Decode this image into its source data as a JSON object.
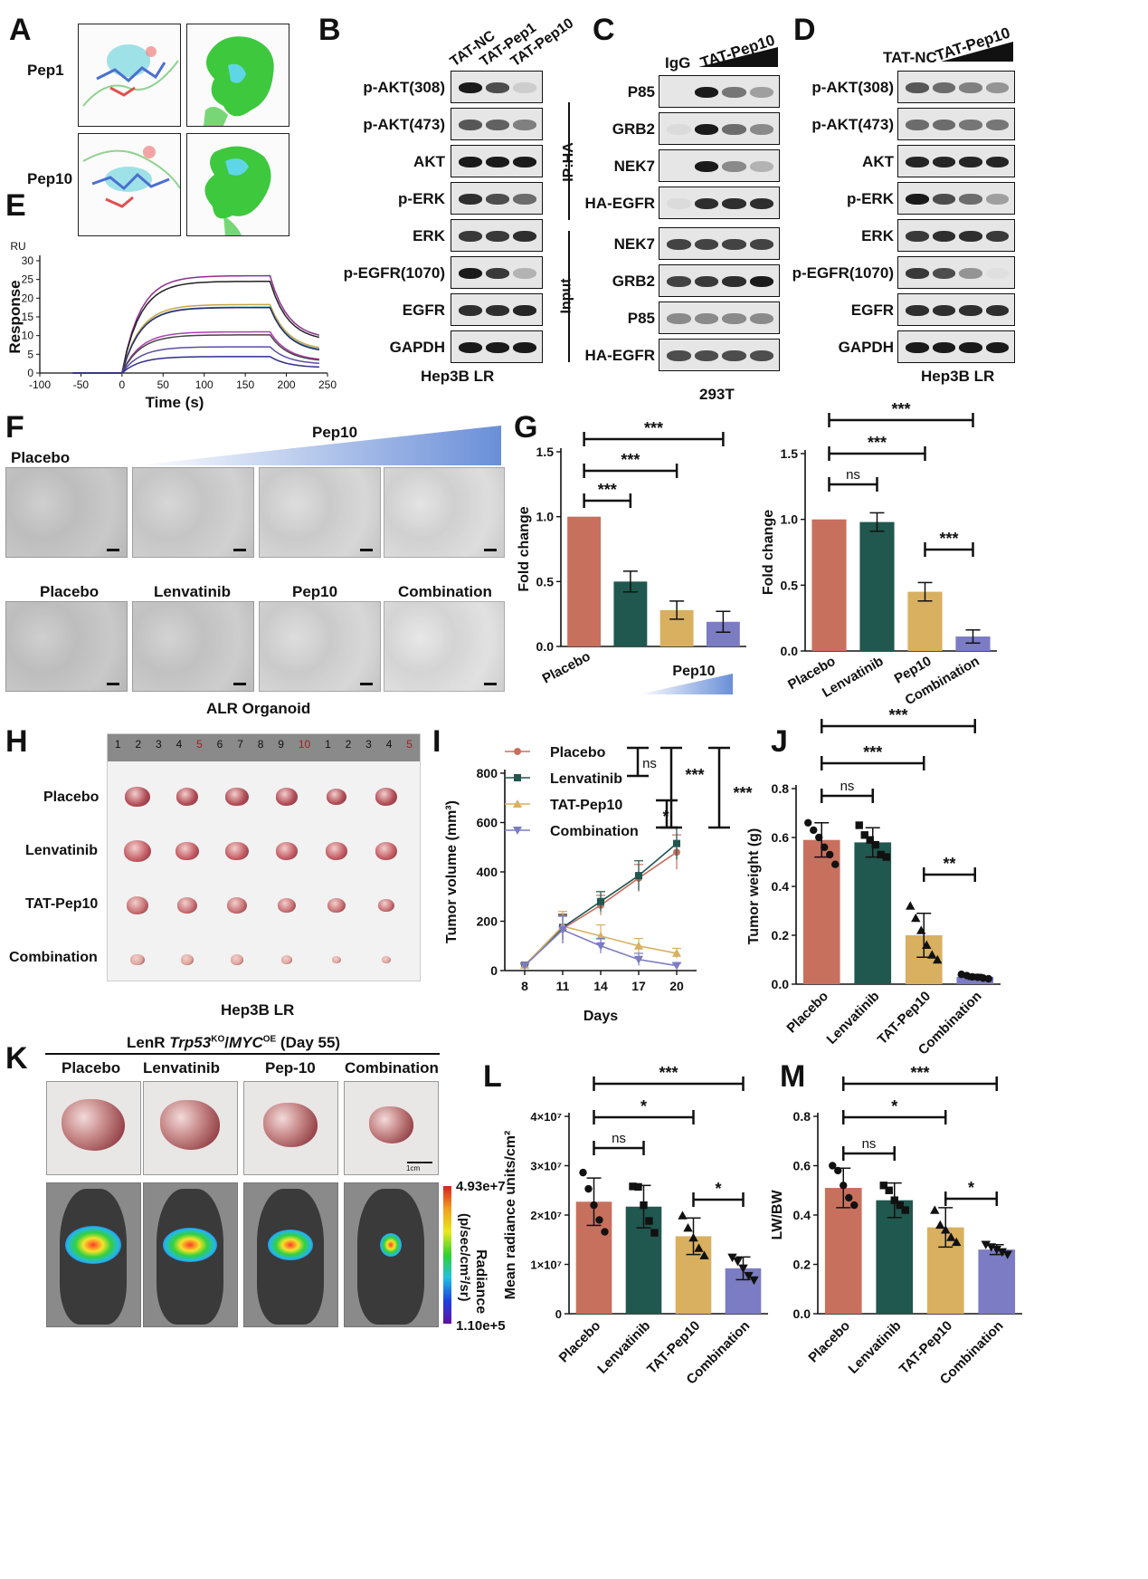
{
  "panels": {
    "A": "A",
    "B": "B",
    "C": "C",
    "D": "D",
    "E": "E",
    "F": "F",
    "G": "G",
    "H": "H",
    "I": "I",
    "J": "J",
    "K": "K",
    "L": "L",
    "M": "M"
  },
  "panel_a": {
    "row1": "Pep1",
    "row2": "Pep10"
  },
  "panel_b": {
    "lanes": [
      "TAT-NC",
      "TAT-Pep1",
      "TAT-Pep10"
    ],
    "rows": [
      "p-AKT(308)",
      "p-AKT(473)",
      "AKT",
      "p-ERK",
      "ERK",
      "p-EGFR(1070)",
      "EGFR",
      "GAPDH"
    ],
    "caption": "Hep3B LR"
  },
  "panel_c": {
    "lane_igg": "IgG",
    "lane_pep": "TAT-Pep10",
    "group_ip": "IP:HA",
    "group_input": "Input",
    "ip_rows": [
      "P85",
      "GRB2",
      "NEK7",
      "HA-EGFR"
    ],
    "input_rows": [
      "NEK7",
      "GRB2",
      "P85",
      "HA-EGFR"
    ],
    "caption": "293T"
  },
  "panel_d": {
    "lane_nc": "TAT-NC",
    "lane_pep": "TAT-Pep10",
    "rows": [
      "p-AKT(308)",
      "p-AKT(473)",
      "AKT",
      "p-ERK",
      "ERK",
      "p-EGFR(1070)",
      "EGFR",
      "GAPDH"
    ],
    "caption": "Hep3B LR"
  },
  "panel_f": {
    "row1_left": "Placebo",
    "row1_gradient": "Pep10",
    "row2": [
      "Placebo",
      "Lenvatinib",
      "Pep10",
      "Combination"
    ],
    "caption": "ALR Organoid"
  },
  "panel_h": {
    "rows": [
      "Placebo",
      "Lenvatinib",
      "TAT-Pep10",
      "Combination"
    ],
    "ruler": [
      "1",
      "2",
      "3",
      "4",
      "5",
      "6",
      "7",
      "8",
      "9",
      "10",
      "1",
      "2",
      "3",
      "4",
      "5"
    ],
    "caption": "Hep3B LR"
  },
  "panel_k": {
    "title_prefix": "LenR ",
    "title_gene1": "Trp53",
    "title_sup1": "KO",
    "title_sep": "/",
    "title_gene2": "MYC",
    "title_sup2": "OE",
    "title_suffix": " (Day 55)",
    "cols": [
      "Placebo",
      "Lenvatinib",
      "Pep-10",
      "Combination"
    ],
    "scale": "1cm",
    "colorbar_max": "4.93e+7",
    "colorbar_min": "1.10e+5",
    "colorbar_label": "Radiance",
    "colorbar_units": "(p/sec/cm²/sr)"
  },
  "colors": {
    "placebo": "#c8705e",
    "lenvatinib": "#20574f",
    "pep10": "#d8b060",
    "combination": "#7b7cc3",
    "band": "#1a1a1a"
  },
  "chart_data": [
    {
      "id": "E",
      "type": "line",
      "unit_label": "RU",
      "ylabel": "Response",
      "xlabel": "Time (s)",
      "xlim": [
        -100,
        250
      ],
      "ylim": [
        0,
        30
      ],
      "xticks": [
        -100,
        -50,
        0,
        50,
        100,
        150,
        200,
        250
      ],
      "yticks": [
        0,
        5,
        10,
        15,
        20,
        25,
        30
      ],
      "series": [
        {
          "color": "#8e2f8e",
          "plateau": 26.0,
          "end": 9.0
        },
        {
          "color": "#222222",
          "plateau": 24.5,
          "end": 8.5
        },
        {
          "color": "#c9a640",
          "plateau": 18.3,
          "end": 6.0
        },
        {
          "color": "#3aa7b5",
          "plateau": 17.6,
          "end": 5.6
        },
        {
          "color": "#2c2c6c",
          "plateau": 17.5,
          "end": 5.4
        },
        {
          "color": "#b03fb0",
          "plateau": 11.0,
          "end": 3.2
        },
        {
          "color": "#444444",
          "plateau": 10.2,
          "end": 3.0
        },
        {
          "color": "#5a4fa0",
          "plateau": 7.0,
          "end": 2.3
        },
        {
          "color": "#2f2f8a",
          "plateau": 4.4,
          "end": 1.4
        }
      ]
    },
    {
      "id": "G-left",
      "type": "bar",
      "ylabel": "Fold change",
      "ylim": [
        0,
        1.5
      ],
      "yticks": [
        "0.0",
        "0.5",
        "1.0",
        "1.5"
      ],
      "categories": [
        "Placebo",
        "",
        "",
        ""
      ],
      "x_gradient_label": "Pep10",
      "values": [
        1.0,
        0.5,
        0.28,
        0.19
      ],
      "errors": [
        0,
        0.08,
        0.07,
        0.08
      ],
      "colors": [
        "#c8705e",
        "#20574f",
        "#d8b060",
        "#7b7cc3"
      ],
      "significance": [
        {
          "from": 0,
          "to": 1,
          "label": "***"
        },
        {
          "from": 0,
          "to": 2,
          "label": "***"
        },
        {
          "from": 0,
          "to": 3,
          "label": "***"
        }
      ]
    },
    {
      "id": "G-right",
      "type": "bar",
      "ylabel": "Fold change",
      "ylim": [
        0,
        1.5
      ],
      "yticks": [
        "0.0",
        "0.5",
        "1.0",
        "1.5"
      ],
      "categories": [
        "Placebo",
        "Lenvatinib",
        "Pep10",
        "Combination"
      ],
      "values": [
        1.0,
        0.98,
        0.45,
        0.11
      ],
      "errors": [
        0,
        0.07,
        0.07,
        0.05
      ],
      "colors": [
        "#c8705e",
        "#20574f",
        "#d8b060",
        "#7b7cc3"
      ],
      "significance": [
        {
          "from": 0,
          "to": 1,
          "label": "ns"
        },
        {
          "from": 0,
          "to": 2,
          "label": "***"
        },
        {
          "from": 0,
          "to": 3,
          "label": "***"
        },
        {
          "from": 2,
          "to": 3,
          "label": "***"
        }
      ]
    },
    {
      "id": "I",
      "type": "line",
      "ylabel": "Tumor volume (mm³)",
      "xlabel": "Days",
      "x": [
        8,
        11,
        14,
        17,
        20
      ],
      "xticks": [
        "8",
        "11",
        "14",
        "17",
        "20"
      ],
      "ylim": [
        0,
        800
      ],
      "yticks": [
        "0",
        "200",
        "400",
        "600",
        "800"
      ],
      "series": [
        {
          "name": "Placebo",
          "values": [
            22,
            170,
            265,
            375,
            480
          ],
          "errors": [
            8,
            60,
            40,
            55,
            70
          ],
          "color": "#c8705e",
          "marker": "circle"
        },
        {
          "name": "Lenvatinib",
          "values": [
            22,
            175,
            280,
            385,
            515
          ],
          "errors": [
            8,
            50,
            40,
            60,
            65
          ],
          "color": "#20574f",
          "marker": "square"
        },
        {
          "name": "TAT-Pep10",
          "values": [
            22,
            180,
            140,
            100,
            70
          ],
          "errors": [
            8,
            60,
            45,
            30,
            20
          ],
          "color": "#d8b060",
          "marker": "triangle"
        },
        {
          "name": "Combination",
          "values": [
            20,
            165,
            100,
            45,
            20
          ],
          "errors": [
            6,
            55,
            30,
            25,
            10
          ],
          "color": "#7b7cc3",
          "marker": "triangle-down"
        }
      ],
      "significance": [
        {
          "pair": "Placebo vs Lenvatinib",
          "label": "ns"
        },
        {
          "pair": "TAT-Pep10 vs Combination",
          "label": "*"
        },
        {
          "pair": "Placebo vs TAT-Pep10",
          "label": "***"
        },
        {
          "pair": "Placebo vs Combination",
          "label": "***"
        }
      ]
    },
    {
      "id": "J",
      "type": "bar",
      "ylabel": "Tumor weight (g)",
      "ylim": [
        0,
        0.8
      ],
      "yticks": [
        "0.0",
        "0.2",
        "0.4",
        "0.6",
        "0.8"
      ],
      "categories": [
        "Placebo",
        "Lenvatinib",
        "TAT-Pep10",
        "Combination"
      ],
      "values": [
        0.59,
        0.58,
        0.2,
        0.03
      ],
      "errors": [
        0.07,
        0.06,
        0.09,
        0.01
      ],
      "colors": [
        "#c8705e",
        "#20574f",
        "#d8b060",
        "#7b7cc3"
      ],
      "points": [
        [
          0.66,
          0.63,
          0.6,
          0.56,
          0.53,
          0.49
        ],
        [
          0.65,
          0.61,
          0.59,
          0.57,
          0.53,
          0.52
        ],
        [
          0.32,
          0.27,
          0.22,
          0.16,
          0.12,
          0.1
        ],
        [
          0.04,
          0.035,
          0.03,
          0.028,
          0.025,
          0.022
        ]
      ],
      "markers": [
        "circle",
        "square",
        "triangle",
        "circle"
      ],
      "significance": [
        {
          "from": 0,
          "to": 1,
          "label": "ns"
        },
        {
          "from": 0,
          "to": 2,
          "label": "***"
        },
        {
          "from": 0,
          "to": 3,
          "label": "***"
        },
        {
          "from": 2,
          "to": 3,
          "label": "**"
        }
      ]
    },
    {
      "id": "L",
      "type": "bar",
      "ylabel": "Mean radiance units/cm²",
      "ylim": [
        0,
        40000000
      ],
      "yticks": [
        "0",
        "1×10⁷",
        "2×10⁷",
        "3×10⁷",
        "4×10⁷"
      ],
      "categories": [
        "Placebo",
        "Lenvatinib",
        "TAT-Pep10",
        "Combination"
      ],
      "values": [
        22700000,
        21700000,
        15700000,
        9200000
      ],
      "errors": [
        4800000,
        4300000,
        3700000,
        2300000
      ],
      "colors": [
        "#c8705e",
        "#20574f",
        "#d8b060",
        "#7b7cc3"
      ],
      "points": [
        [
          28600000,
          25300000,
          22000000,
          19000000,
          16600000
        ],
        [
          25800000,
          25700000,
          22000000,
          18800000,
          16400000
        ],
        [
          19900000,
          17400000,
          15400000,
          13300000,
          11800000
        ],
        [
          11400000,
          10600000,
          9200000,
          7700000,
          6800000
        ]
      ],
      "markers": [
        "circle",
        "square",
        "triangle",
        "triangle-down"
      ],
      "significance": [
        {
          "from": 0,
          "to": 1,
          "label": "ns"
        },
        {
          "from": 0,
          "to": 2,
          "label": "*"
        },
        {
          "from": 0,
          "to": 3,
          "label": "***"
        },
        {
          "from": 2,
          "to": 3,
          "label": "*"
        }
      ]
    },
    {
      "id": "M",
      "type": "bar",
      "ylabel": "LW/BW",
      "ylim": [
        0,
        0.8
      ],
      "yticks": [
        "0.0",
        "0.2",
        "0.4",
        "0.6",
        "0.8"
      ],
      "categories": [
        "Placebo",
        "Lenvatinib",
        "TAT-Pep10",
        "Combination"
      ],
      "values": [
        0.51,
        0.46,
        0.35,
        0.26
      ],
      "errors": [
        0.08,
        0.07,
        0.08,
        0.02
      ],
      "colors": [
        "#c8705e",
        "#20574f",
        "#d8b060",
        "#7b7cc3"
      ],
      "points": [
        [
          0.6,
          0.58,
          0.52,
          0.47,
          0.44
        ],
        [
          0.52,
          0.5,
          0.46,
          0.44,
          0.42
        ],
        [
          0.42,
          0.36,
          0.34,
          0.31,
          0.29
        ],
        [
          0.28,
          0.27,
          0.26,
          0.25,
          0.24
        ]
      ],
      "markers": [
        "circle",
        "square",
        "triangle",
        "triangle-down"
      ],
      "significance": [
        {
          "from": 0,
          "to": 1,
          "label": "ns"
        },
        {
          "from": 0,
          "to": 2,
          "label": "*"
        },
        {
          "from": 0,
          "to": 3,
          "label": "***"
        },
        {
          "from": 2,
          "to": 3,
          "label": "*"
        }
      ]
    }
  ]
}
